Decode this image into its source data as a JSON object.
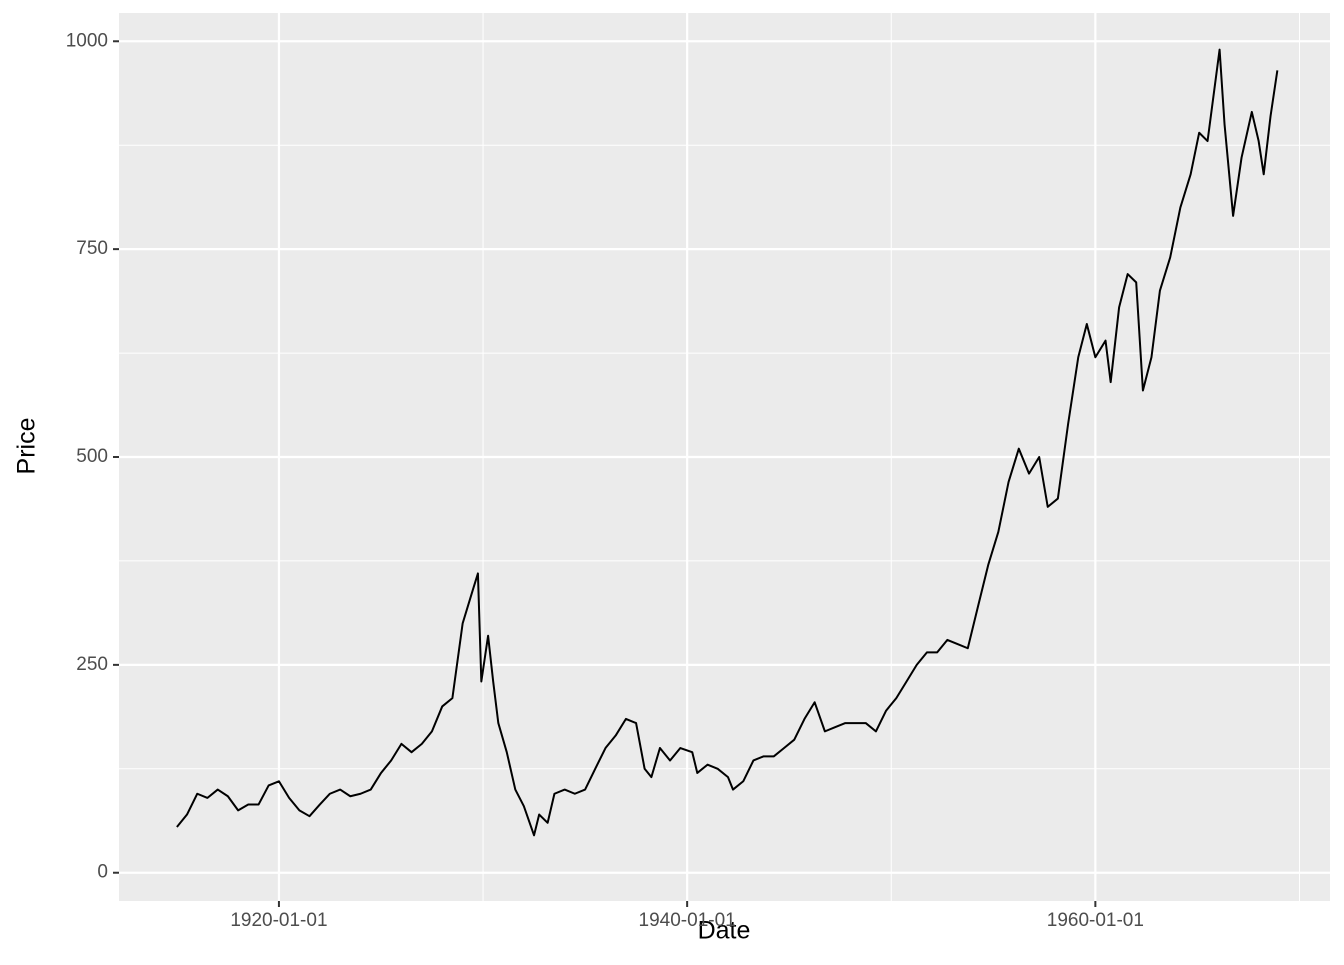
{
  "chart_data": {
    "type": "line",
    "x_label": "Date",
    "y_label": "Price",
    "x": [
      "1915-01-01",
      "1915-07-01",
      "1916-01-01",
      "1916-07-01",
      "1917-01-01",
      "1917-07-01",
      "1918-01-01",
      "1918-07-01",
      "1919-01-01",
      "1919-07-01",
      "1920-01-01",
      "1920-07-01",
      "1921-01-01",
      "1921-07-01",
      "1922-01-01",
      "1922-07-01",
      "1923-01-01",
      "1923-07-01",
      "1924-01-01",
      "1924-07-01",
      "1925-01-01",
      "1925-07-01",
      "1926-01-01",
      "1926-07-01",
      "1927-01-01",
      "1927-07-01",
      "1928-01-01",
      "1928-07-01",
      "1929-01-01",
      "1929-07-01",
      "1929-10-01",
      "1929-12-01",
      "1930-04-01",
      "1930-07-01",
      "1930-10-01",
      "1931-03-01",
      "1931-08-01",
      "1932-01-01",
      "1932-07-01",
      "1932-10-01",
      "1933-03-01",
      "1933-07-01",
      "1934-01-01",
      "1934-07-01",
      "1935-01-01",
      "1935-07-01",
      "1936-01-01",
      "1936-07-01",
      "1937-01-01",
      "1937-07-01",
      "1937-12-01",
      "1938-04-01",
      "1938-09-01",
      "1939-03-01",
      "1939-09-01",
      "1940-04-01",
      "1940-07-01",
      "1941-01-01",
      "1941-07-01",
      "1942-01-01",
      "1942-04-01",
      "1942-10-01",
      "1943-04-01",
      "1943-10-01",
      "1944-04-01",
      "1944-10-01",
      "1945-04-01",
      "1945-10-01",
      "1946-04-01",
      "1946-10-01",
      "1947-04-01",
      "1947-10-01",
      "1948-04-01",
      "1948-10-01",
      "1949-04-01",
      "1949-10-01",
      "1950-04-01",
      "1950-10-01",
      "1951-04-01",
      "1951-10-01",
      "1952-04-01",
      "1952-10-01",
      "1953-04-01",
      "1953-10-01",
      "1954-04-01",
      "1954-10-01",
      "1955-04-01",
      "1955-10-01",
      "1956-04-01",
      "1956-10-01",
      "1957-04-01",
      "1957-09-01",
      "1958-03-01",
      "1958-09-01",
      "1959-03-01",
      "1959-08-01",
      "1960-01-01",
      "1960-07-01",
      "1960-10-01",
      "1961-03-01",
      "1961-08-01",
      "1962-01-01",
      "1962-05-01",
      "1962-10-01",
      "1963-03-01",
      "1963-09-01",
      "1964-03-01",
      "1964-09-01",
      "1965-02-01",
      "1965-07-01",
      "1966-02-01",
      "1966-05-01",
      "1966-10-01",
      "1967-03-01",
      "1967-09-01",
      "1968-01-01",
      "1968-04-01",
      "1968-08-01",
      "1968-12-01"
    ],
    "series": [
      {
        "color": "#000000",
        "values": [
          55,
          70,
          95,
          90,
          100,
          92,
          75,
          82,
          82,
          105,
          110,
          90,
          75,
          68,
          82,
          95,
          100,
          92,
          95,
          100,
          120,
          135,
          155,
          145,
          155,
          170,
          200,
          210,
          300,
          340,
          360,
          230,
          285,
          230,
          180,
          145,
          100,
          80,
          45,
          70,
          60,
          95,
          100,
          95,
          100,
          125,
          150,
          165,
          185,
          180,
          125,
          115,
          150,
          135,
          150,
          145,
          120,
          130,
          125,
          115,
          100,
          110,
          135,
          140,
          140,
          150,
          160,
          185,
          205,
          170,
          175,
          180,
          180,
          180,
          170,
          195,
          210,
          230,
          250,
          265,
          265,
          280,
          275,
          270,
          320,
          370,
          410,
          470,
          510,
          480,
          500,
          440,
          450,
          540,
          620,
          660,
          620,
          640,
          590,
          680,
          720,
          710,
          580,
          620,
          700,
          740,
          800,
          840,
          890,
          880,
          990,
          900,
          790,
          860,
          915,
          880,
          840,
          910,
          965
        ]
      }
    ],
    "xlim": [
      "1912-03-01",
      "1971-07-01"
    ],
    "xticks": [
      "1920-01-01",
      "1940-01-01",
      "1960-01-01"
    ],
    "xminor": [
      "1930-01-01",
      "1950-01-01",
      "1970-01-01"
    ],
    "ylim": [
      -34,
      1034
    ],
    "yticks": [
      0,
      250,
      500,
      750,
      1000
    ],
    "yminor": [
      125,
      375,
      625,
      875
    ],
    "grid": true
  }
}
